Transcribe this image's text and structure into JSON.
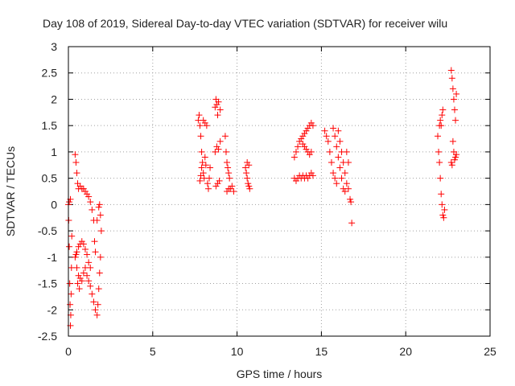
{
  "chart_data": {
    "type": "scatter",
    "title": "Day 108 of 2019, Sidereal Day-to-day VTEC variation (SDTVAR) for receiver wilu",
    "xlabel": "GPS time / hours",
    "ylabel": "SDTVAR / TECUs",
    "xlim": [
      0,
      25
    ],
    "ylim": [
      -2.5,
      3
    ],
    "grid": true,
    "marker": "+",
    "color": "#ff0000",
    "xticks": [
      0,
      5,
      10,
      15,
      20,
      25
    ],
    "yticks": [
      -2.5,
      -2,
      -1.5,
      -1,
      -0.5,
      0,
      0.5,
      1,
      1.5,
      2,
      2.5,
      3
    ],
    "series": [
      {
        "name": "SDTVAR",
        "points": [
          [
            0.0,
            0.0
          ],
          [
            0.02,
            -0.3
          ],
          [
            0.05,
            -0.8
          ],
          [
            0.08,
            -1.5
          ],
          [
            0.1,
            -1.9
          ],
          [
            0.12,
            -2.3
          ],
          [
            0.14,
            -2.1
          ],
          [
            0.16,
            -1.7
          ],
          [
            0.18,
            -1.2
          ],
          [
            0.2,
            -0.6
          ],
          [
            0.05,
            0.05
          ],
          [
            0.12,
            0.1
          ],
          [
            0.4,
            0.95
          ],
          [
            0.45,
            0.8
          ],
          [
            0.5,
            0.6
          ],
          [
            0.55,
            0.4
          ],
          [
            0.6,
            0.3
          ],
          [
            0.7,
            0.35
          ],
          [
            0.8,
            0.3
          ],
          [
            0.9,
            0.3
          ],
          [
            1.0,
            0.25
          ],
          [
            1.1,
            0.2
          ],
          [
            1.2,
            0.15
          ],
          [
            1.3,
            0.05
          ],
          [
            1.4,
            -0.1
          ],
          [
            1.5,
            -0.3
          ],
          [
            1.55,
            -0.7
          ],
          [
            1.6,
            -0.9
          ],
          [
            1.7,
            -0.3
          ],
          [
            1.8,
            -0.05
          ],
          [
            1.85,
            0.0
          ],
          [
            1.9,
            -0.2
          ],
          [
            0.4,
            -1.0
          ],
          [
            0.5,
            -1.2
          ],
          [
            0.6,
            -1.35
          ],
          [
            0.7,
            -1.4
          ],
          [
            0.8,
            -1.45
          ],
          [
            0.9,
            -1.3
          ],
          [
            1.0,
            -1.2
          ],
          [
            1.1,
            -1.35
          ],
          [
            1.2,
            -1.45
          ],
          [
            1.3,
            -1.55
          ],
          [
            1.4,
            -1.7
          ],
          [
            1.5,
            -1.85
          ],
          [
            1.6,
            -2.0
          ],
          [
            1.7,
            -2.1
          ],
          [
            1.75,
            -1.9
          ],
          [
            1.8,
            -1.6
          ],
          [
            1.85,
            -1.3
          ],
          [
            1.9,
            -1.0
          ],
          [
            1.95,
            -0.5
          ],
          [
            0.5,
            -0.9
          ],
          [
            0.6,
            -0.8
          ],
          [
            0.7,
            -0.75
          ],
          [
            0.8,
            -0.7
          ],
          [
            0.9,
            -0.75
          ],
          [
            1.0,
            -0.85
          ],
          [
            1.1,
            -0.95
          ],
          [
            1.2,
            -1.1
          ],
          [
            1.3,
            -1.2
          ],
          [
            0.45,
            -0.95
          ],
          [
            0.55,
            -1.5
          ],
          [
            0.65,
            -1.6
          ],
          [
            7.7,
            1.6
          ],
          [
            7.75,
            1.7
          ],
          [
            7.8,
            1.5
          ],
          [
            7.85,
            1.3
          ],
          [
            7.9,
            1.0
          ],
          [
            7.95,
            0.8
          ],
          [
            8.0,
            0.6
          ],
          [
            8.05,
            0.5
          ],
          [
            7.8,
            0.45
          ],
          [
            7.85,
            0.55
          ],
          [
            7.9,
            0.7
          ],
          [
            8.0,
            1.6
          ],
          [
            8.1,
            1.55
          ],
          [
            8.2,
            1.5
          ],
          [
            8.25,
            0.4
          ],
          [
            8.3,
            0.3
          ],
          [
            8.35,
            0.5
          ],
          [
            8.4,
            0.7
          ],
          [
            8.1,
            0.9
          ],
          [
            8.15,
            0.75
          ],
          [
            8.7,
            1.85
          ],
          [
            8.75,
            2.0
          ],
          [
            8.8,
            1.9
          ],
          [
            8.85,
            1.7
          ],
          [
            8.9,
            1.95
          ],
          [
            9.0,
            1.8
          ],
          [
            8.7,
            1.0
          ],
          [
            8.8,
            1.1
          ],
          [
            8.9,
            1.05
          ],
          [
            8.75,
            0.35
          ],
          [
            8.85,
            0.4
          ],
          [
            8.95,
            0.45
          ],
          [
            9.0,
            1.2
          ],
          [
            9.3,
            1.3
          ],
          [
            9.35,
            1.0
          ],
          [
            9.4,
            0.8
          ],
          [
            9.45,
            0.7
          ],
          [
            9.5,
            0.6
          ],
          [
            9.55,
            0.5
          ],
          [
            9.4,
            0.25
          ],
          [
            9.5,
            0.3
          ],
          [
            9.6,
            0.3
          ],
          [
            9.7,
            0.35
          ],
          [
            9.8,
            0.25
          ],
          [
            10.5,
            0.7
          ],
          [
            10.55,
            0.6
          ],
          [
            10.6,
            0.5
          ],
          [
            10.65,
            0.4
          ],
          [
            10.7,
            0.35
          ],
          [
            10.75,
            0.3
          ],
          [
            10.6,
            0.8
          ],
          [
            10.7,
            0.75
          ],
          [
            13.4,
            0.9
          ],
          [
            13.5,
            1.0
          ],
          [
            13.6,
            1.1
          ],
          [
            13.7,
            1.2
          ],
          [
            13.8,
            1.25
          ],
          [
            13.9,
            1.3
          ],
          [
            14.0,
            1.35
          ],
          [
            14.1,
            1.4
          ],
          [
            14.2,
            1.45
          ],
          [
            14.3,
            1.5
          ],
          [
            14.4,
            1.55
          ],
          [
            14.5,
            1.5
          ],
          [
            13.4,
            0.5
          ],
          [
            13.5,
            0.45
          ],
          [
            13.6,
            0.5
          ],
          [
            13.7,
            0.55
          ],
          [
            13.8,
            0.5
          ],
          [
            13.9,
            0.55
          ],
          [
            14.0,
            0.5
          ],
          [
            14.1,
            0.55
          ],
          [
            14.2,
            0.5
          ],
          [
            14.3,
            0.55
          ],
          [
            14.4,
            0.6
          ],
          [
            14.5,
            0.55
          ],
          [
            13.9,
            1.15
          ],
          [
            14.0,
            1.1
          ],
          [
            14.1,
            1.05
          ],
          [
            14.2,
            1.0
          ],
          [
            14.3,
            0.95
          ],
          [
            14.4,
            1.0
          ],
          [
            15.2,
            1.4
          ],
          [
            15.3,
            1.3
          ],
          [
            15.4,
            1.2
          ],
          [
            15.5,
            1.0
          ],
          [
            15.6,
            0.8
          ],
          [
            15.7,
            0.6
          ],
          [
            15.8,
            0.5
          ],
          [
            15.9,
            0.4
          ],
          [
            16.0,
            1.4
          ],
          [
            16.1,
            1.2
          ],
          [
            16.2,
            1.0
          ],
          [
            16.3,
            0.8
          ],
          [
            16.4,
            0.6
          ],
          [
            16.5,
            0.4
          ],
          [
            16.6,
            0.3
          ],
          [
            16.7,
            0.1
          ],
          [
            16.75,
            0.05
          ],
          [
            16.8,
            -0.35
          ],
          [
            15.7,
            1.45
          ],
          [
            15.8,
            1.3
          ],
          [
            15.9,
            1.1
          ],
          [
            16.0,
            0.9
          ],
          [
            16.1,
            0.7
          ],
          [
            16.2,
            0.5
          ],
          [
            16.3,
            0.3
          ],
          [
            16.4,
            0.25
          ],
          [
            16.5,
            1.0
          ],
          [
            16.6,
            0.8
          ],
          [
            21.9,
            1.3
          ],
          [
            21.95,
            1.0
          ],
          [
            22.0,
            0.8
          ],
          [
            22.05,
            0.5
          ],
          [
            22.1,
            0.2
          ],
          [
            22.15,
            0.0
          ],
          [
            22.2,
            -0.2
          ],
          [
            22.25,
            -0.25
          ],
          [
            22.3,
            -0.1
          ],
          [
            22.0,
            1.5
          ],
          [
            22.05,
            1.6
          ],
          [
            22.1,
            1.5
          ],
          [
            22.15,
            1.7
          ],
          [
            22.2,
            1.8
          ],
          [
            22.7,
            2.55
          ],
          [
            22.75,
            2.4
          ],
          [
            22.8,
            2.2
          ],
          [
            22.85,
            2.0
          ],
          [
            22.9,
            1.8
          ],
          [
            22.95,
            1.6
          ],
          [
            23.0,
            2.1
          ],
          [
            22.8,
            1.2
          ],
          [
            22.85,
            1.0
          ],
          [
            22.9,
            0.85
          ],
          [
            22.95,
            0.9
          ],
          [
            23.0,
            0.95
          ],
          [
            22.7,
            0.8
          ],
          [
            22.75,
            0.75
          ]
        ]
      }
    ]
  }
}
